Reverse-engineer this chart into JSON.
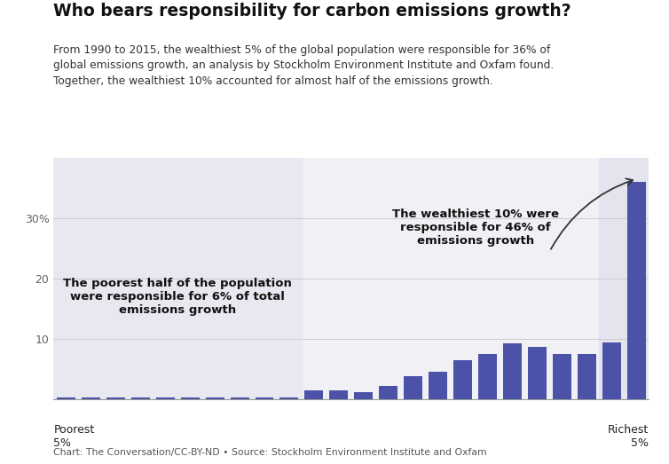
{
  "title": "Who bears responsibility for carbon emissions growth?",
  "subtitle": "From 1990 to 2015, the wealthiest 5% of the global population were responsible for 36% of\nglobal emissions growth, an analysis by Stockholm Environment Institute and Oxfam found.\nTogether, the wealthiest 10% accounted for almost half of the emissions growth.",
  "footnote": "Chart: The Conversation/CC-BY-ND • Source: Stockholm Environment Institute and Oxfam",
  "bar_values": [
    0.3,
    0.3,
    0.3,
    0.3,
    0.3,
    0.3,
    0.3,
    0.3,
    0.3,
    0.3,
    1.4,
    1.4,
    1.2,
    2.2,
    3.8,
    4.5,
    6.5,
    7.5,
    9.3,
    8.6,
    7.5,
    7.5,
    9.4,
    36.0
  ],
  "bar_color": "#4b52a8",
  "background_color": "#ffffff",
  "plot_bg_color": "#f0f0f5",
  "highlight_right_color": "#e4e4ef",
  "highlight_left_color": "#e8e8f0",
  "yticks": [
    10,
    20,
    30
  ],
  "ylim": [
    0,
    40
  ],
  "annotation_poor_text": "The poorest half of the population\nwere responsible for 6% of total\nemissions growth",
  "annotation_rich_text": "The wealthiest 10% were\nresponsible for 46% of\nemissions growth",
  "xlabel_left": "Poorest\n5%",
  "xlabel_right": "Richest\n5%"
}
